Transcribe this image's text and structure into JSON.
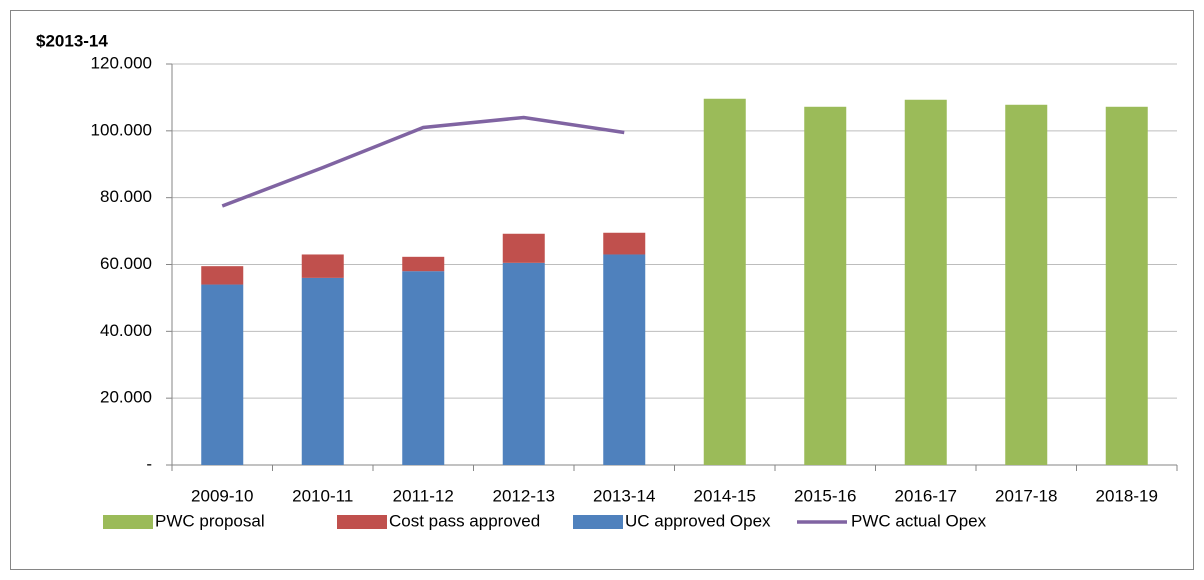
{
  "chart_data": {
    "type": "bar",
    "y_label": "$2013-14",
    "categories": [
      "2009-10",
      "2010-11",
      "2011-12",
      "2012-13",
      "2013-14",
      "2014-15",
      "2015-16",
      "2016-17",
      "2017-18",
      "2018-19"
    ],
    "series": [
      {
        "name": "PWC proposal",
        "type": "bar",
        "color": "#9bbb59",
        "values": [
          null,
          null,
          null,
          null,
          null,
          109.6,
          107.2,
          109.3,
          107.8,
          107.2
        ]
      },
      {
        "name": "Cost pass approved",
        "type": "bar",
        "color": "#c0504d",
        "values": [
          5.5,
          7,
          4.3,
          8.7,
          6.5,
          null,
          null,
          null,
          null,
          null
        ]
      },
      {
        "name": "UC approved Opex",
        "type": "bar",
        "color": "#4f81bd",
        "values": [
          54,
          56,
          58,
          60.5,
          63,
          null,
          null,
          null,
          null,
          null
        ]
      },
      {
        "name": "PWC actual Opex",
        "type": "line",
        "color": "#8064a2",
        "values": [
          77.5,
          89,
          101,
          104,
          99.5,
          null,
          null,
          null,
          null,
          null
        ]
      }
    ],
    "stack_order": [
      "UC approved Opex",
      "Cost pass approved",
      "PWC proposal"
    ],
    "ylim": [
      0,
      120
    ],
    "yticks": [
      {
        "value": 0,
        "label": "-"
      },
      {
        "value": 20,
        "label": "20.000"
      },
      {
        "value": 40,
        "label": "40.000"
      },
      {
        "value": 60,
        "label": "60.000"
      },
      {
        "value": 80,
        "label": "80.000"
      },
      {
        "value": 100,
        "label": "100.000"
      },
      {
        "value": 120,
        "label": "120.000"
      }
    ],
    "grid": true,
    "legend": "bottom"
  }
}
